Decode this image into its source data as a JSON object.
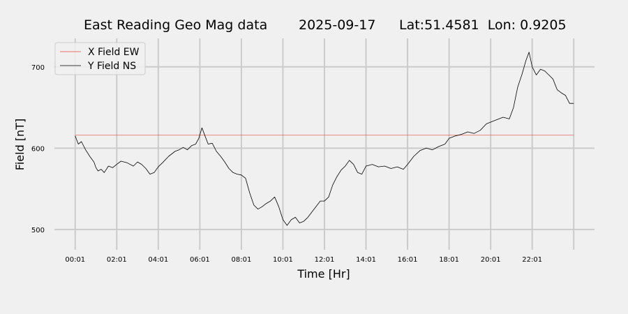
{
  "chart_data": {
    "type": "line",
    "title_parts": [
      "East Reading Geo Mag data",
      "2025-09-17",
      "Lat:51.4581  Lon: 0.9205"
    ],
    "xlabel": "Time  [Hr]",
    "ylabel": "Field  [nT]",
    "x_ticks": [
      "00:01",
      "02:01",
      "04:01",
      "06:01",
      "08:01",
      "10:01",
      "12:01",
      "14:01",
      "16:01",
      "18:01",
      "20:01",
      "22:01"
    ],
    "y_ticks": [
      500,
      600,
      700
    ],
    "xlim": [
      -1,
      25
    ],
    "ylim": [
      475,
      735
    ],
    "grid": true,
    "legend_position": "top-left",
    "series": [
      {
        "name": "X Field EW",
        "color": "#e8453c",
        "x": [
          0,
          24
        ],
        "y": [
          616,
          616
        ]
      },
      {
        "name": "Y Field NS",
        "color": "#000000",
        "x": [
          0,
          0.15,
          0.3,
          0.5,
          0.7,
          0.9,
          1.0,
          1.1,
          1.25,
          1.4,
          1.6,
          1.8,
          2.0,
          2.2,
          2.5,
          2.8,
          3.0,
          3.2,
          3.4,
          3.6,
          3.8,
          4.0,
          4.2,
          4.5,
          4.8,
          5.0,
          5.2,
          5.4,
          5.6,
          5.8,
          5.95,
          6.1,
          6.25,
          6.4,
          6.6,
          6.8,
          7.0,
          7.2,
          7.4,
          7.6,
          7.8,
          8.0,
          8.2,
          8.4,
          8.6,
          8.8,
          9.0,
          9.2,
          9.4,
          9.6,
          9.8,
          10.0,
          10.2,
          10.4,
          10.6,
          10.8,
          11.0,
          11.2,
          11.5,
          11.8,
          12.0,
          12.2,
          12.4,
          12.6,
          12.8,
          13.0,
          13.2,
          13.4,
          13.6,
          13.8,
          14.0,
          14.3,
          14.6,
          14.9,
          15.2,
          15.5,
          15.8,
          16.0,
          16.3,
          16.6,
          16.9,
          17.2,
          17.5,
          17.8,
          18.0,
          18.3,
          18.6,
          18.9,
          19.2,
          19.5,
          19.8,
          20.0,
          20.3,
          20.6,
          20.9,
          21.1,
          21.3,
          21.5,
          21.7,
          21.85,
          22.0,
          22.2,
          22.4,
          22.6,
          22.8,
          23.0,
          23.2,
          23.4,
          23.6,
          23.8,
          24.0
        ],
        "y": [
          615,
          605,
          608,
          598,
          590,
          583,
          576,
          572,
          574,
          570,
          578,
          576,
          580,
          584,
          582,
          578,
          583,
          580,
          575,
          568,
          570,
          577,
          582,
          590,
          596,
          598,
          601,
          598,
          603,
          605,
          612,
          625,
          615,
          605,
          606,
          596,
          590,
          583,
          575,
          570,
          568,
          567,
          563,
          545,
          530,
          525,
          528,
          532,
          535,
          540,
          528,
          512,
          505,
          512,
          515,
          508,
          510,
          515,
          525,
          535,
          535,
          540,
          555,
          565,
          573,
          578,
          585,
          580,
          570,
          568,
          578,
          580,
          577,
          578,
          575,
          577,
          574,
          580,
          590,
          597,
          600,
          598,
          602,
          605,
          612,
          615,
          617,
          620,
          618,
          622,
          630,
          632,
          635,
          638,
          636,
          650,
          675,
          690,
          708,
          718,
          700,
          690,
          697,
          695,
          690,
          685,
          672,
          668,
          665,
          655,
          655
        ]
      }
    ]
  }
}
